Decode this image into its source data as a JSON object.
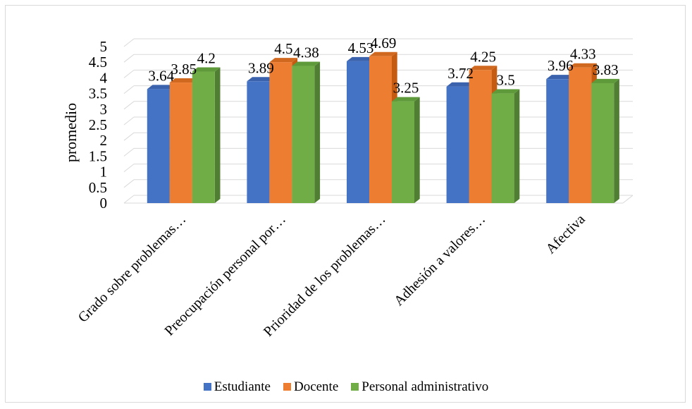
{
  "chart_data": {
    "type": "bar",
    "style": "3d-clustered-column",
    "categories": [
      "Grado sobre problemas…",
      "Preocupación personal por…",
      "Prioridad de los problemas…",
      "Adhesión a valores…",
      "Afectiva"
    ],
    "series": [
      {
        "name": "Estudiante",
        "color": "#4472c4",
        "side_color": "#2f5597",
        "top_color": "#3a62ad",
        "values": [
          3.64,
          3.89,
          4.53,
          3.72,
          3.96
        ],
        "labels": [
          "3.64",
          "3.89",
          "4.53",
          "3.72",
          "3.96"
        ]
      },
      {
        "name": "Docente",
        "color": "#ed7d31",
        "side_color": "#c55a11",
        "top_color": "#d0691f",
        "values": [
          3.85,
          4.5,
          4.69,
          4.25,
          4.33
        ],
        "labels": [
          "3.85",
          "4.5",
          "4.69",
          "4.25",
          "4.33"
        ]
      },
      {
        "name": "Personal administrativo",
        "color": "#70ad47",
        "side_color": "#507e32",
        "top_color": "#5f9a3a",
        "values": [
          4.2,
          4.38,
          3.25,
          3.5,
          3.83
        ],
        "labels": [
          "4.2",
          "4.38",
          "3.25",
          "3.5",
          "3.83"
        ]
      }
    ],
    "ylabel": "promedio",
    "xlabel": "",
    "ylim": [
      0,
      5
    ],
    "yticks": [
      "0",
      "0.5",
      "1",
      "1.5",
      "2",
      "2.5",
      "3",
      "3.5",
      "4",
      "4.5",
      "5"
    ],
    "grid": true,
    "legend_position": "bottom"
  }
}
